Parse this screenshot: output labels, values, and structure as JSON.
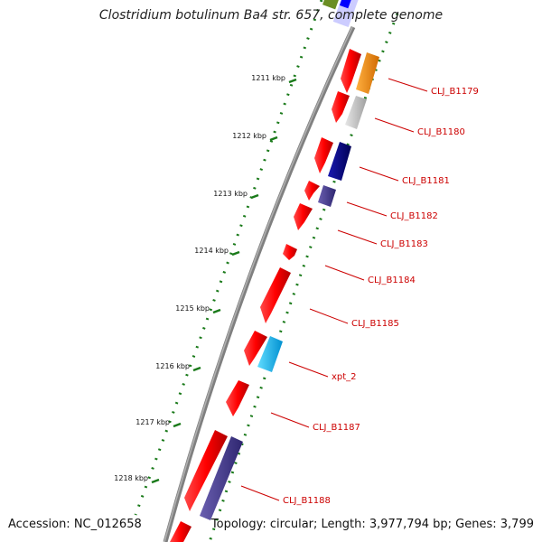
{
  "title": "Clostridium botulinum Ba4 str. 657, complete genome",
  "footer": {
    "accession": "Accession: NC_012658",
    "topology": "Topology: circular; Length: 3,977,794 bp; Genes: 3,799"
  },
  "ticks": [
    {
      "label": "1211 kbp"
    },
    {
      "label": "1212 kbp"
    },
    {
      "label": "1213 kbp"
    },
    {
      "label": "1214 kbp"
    },
    {
      "label": "1215 kbp"
    },
    {
      "label": "1216 kbp"
    },
    {
      "label": "1217 kbp"
    },
    {
      "label": "1218 kbp"
    }
  ],
  "gene_labels": [
    {
      "name": "CLJ_B1179"
    },
    {
      "name": "CLJ_B1180"
    },
    {
      "name": "CLJ_B1181"
    },
    {
      "name": "CLJ_B1182"
    },
    {
      "name": "CLJ_B1183"
    },
    {
      "name": "CLJ_B1184"
    },
    {
      "name": "CLJ_B1185"
    },
    {
      "name": "xpt_2"
    },
    {
      "name": "CLJ_B1187"
    },
    {
      "name": "CLJ_B1188"
    }
  ],
  "colors": {
    "backbone": "#808080",
    "cds": "#ff0000",
    "tick": "#1a7a1a",
    "label_line": "#cc0000",
    "orange": "#ff8c00",
    "gray": "#c0c0c0",
    "navy": "#000080",
    "slate": "#483d8b",
    "cyan": "#00bfff",
    "olive": "#6b8e23",
    "blue": "#0000ff",
    "lavender": "#ccccff"
  }
}
